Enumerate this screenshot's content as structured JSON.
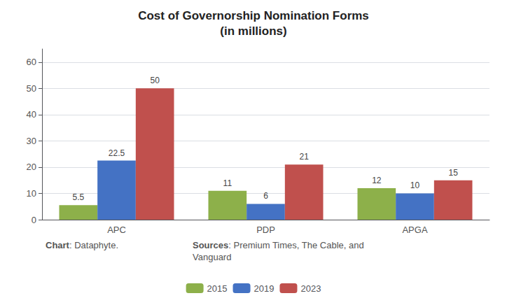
{
  "chart_data": {
    "type": "bar",
    "title": "Cost of Governorship Nomination Forms\n(in millions)",
    "categories": [
      "APC",
      "PDP",
      "APGA"
    ],
    "series": [
      {
        "name": "2015",
        "color": "#8DB04A",
        "values": [
          5.5,
          11,
          12
        ]
      },
      {
        "name": "2019",
        "color": "#4472C4",
        "values": [
          22.5,
          6,
          10
        ]
      },
      {
        "name": "2023",
        "color": "#C0504D",
        "values": [
          50,
          21,
          15
        ]
      }
    ],
    "ylim": [
      0,
      65
    ],
    "yticks": [
      0,
      10,
      20,
      30,
      40,
      50,
      60
    ],
    "grid": true,
    "data_labels": true,
    "legend": "bottom",
    "annotations": [
      "Chart: Dataphyte.",
      "Sources: Premium Times, The Cable, and\nVanguard"
    ]
  }
}
